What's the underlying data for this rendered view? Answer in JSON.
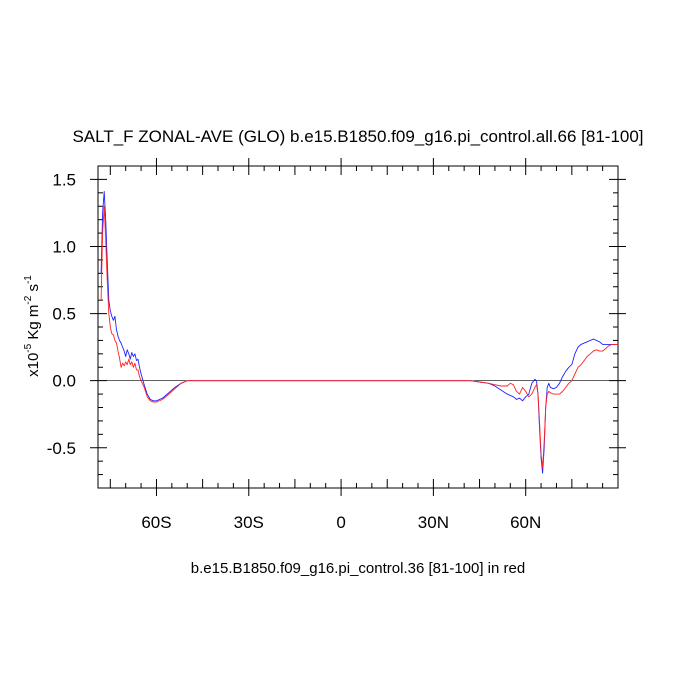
{
  "chart_data": {
    "type": "line",
    "title": "SALT_F ZONAL-AVE (GLO) b.e15.B1850.f09_g16.pi_control.all.66 [81-100]",
    "xlabel": "b.e15.B1850.f09_g16.pi_control.36 [81-100] in red",
    "ylabel": {
      "prefix": "x10",
      "exp": "-5",
      "units": " Kg m",
      "units_exp": "-2",
      "units2": " s",
      "units2_exp": "-1"
    },
    "xlim": [
      -79,
      90
    ],
    "ylim": [
      -0.8,
      1.6
    ],
    "x_ticks": [
      {
        "value": -60,
        "label": "60S"
      },
      {
        "value": -30,
        "label": "30S"
      },
      {
        "value": 0,
        "label": "0"
      },
      {
        "value": 30,
        "label": "30N"
      },
      {
        "value": 60,
        "label": "60N"
      }
    ],
    "y_ticks": [
      {
        "value": 1.5,
        "label": "1.5"
      },
      {
        "value": 1.0,
        "label": "1.0"
      },
      {
        "value": 0.5,
        "label": "0.5"
      },
      {
        "value": 0.0,
        "label": "0.0"
      },
      {
        "value": -0.5,
        "label": "-0.5"
      }
    ],
    "zero_line": true,
    "series": [
      {
        "color": "#2222ff",
        "x": [
          -78,
          -77.5,
          -77,
          -76.5,
          -76,
          -75.5,
          -75,
          -74.5,
          -74,
          -73.5,
          -73,
          -72.5,
          -72,
          -71.5,
          -71,
          -70.5,
          -70,
          -69.5,
          -69,
          -68.5,
          -68,
          -67.5,
          -67,
          -66.5,
          -66,
          -65.5,
          -65,
          -64,
          -63,
          -62,
          -61,
          -60,
          -58,
          -56,
          -54,
          -52,
          -50,
          -30,
          0,
          30,
          42,
          45,
          48,
          50,
          52,
          54,
          56,
          57,
          58,
          59,
          60,
          61,
          62,
          63,
          63.5,
          64,
          64.5,
          65,
          65.5,
          66,
          66.5,
          67,
          67.5,
          68,
          69,
          70,
          71,
          72,
          73,
          74,
          75,
          76,
          77,
          78,
          79,
          80,
          81,
          82,
          83,
          84,
          85,
          86,
          87,
          88,
          89,
          90
        ],
        "y": [
          0.8,
          1.25,
          1.41,
          1.2,
          0.9,
          0.6,
          0.52,
          0.48,
          0.45,
          0.48,
          0.38,
          0.33,
          0.3,
          0.28,
          0.25,
          0.22,
          0.18,
          0.23,
          0.2,
          0.16,
          0.21,
          0.18,
          0.2,
          0.15,
          0.16,
          0.1,
          0.05,
          -0.03,
          -0.1,
          -0.14,
          -0.15,
          -0.15,
          -0.13,
          -0.09,
          -0.05,
          -0.02,
          0.0,
          0.0,
          0.0,
          0.0,
          0.0,
          -0.01,
          -0.02,
          -0.04,
          -0.07,
          -0.1,
          -0.12,
          -0.14,
          -0.13,
          -0.15,
          -0.12,
          -0.1,
          -0.02,
          0.01,
          0.0,
          -0.1,
          -0.35,
          -0.58,
          -0.69,
          -0.5,
          -0.2,
          -0.05,
          -0.02,
          -0.05,
          -0.06,
          -0.05,
          -0.02,
          0.03,
          0.07,
          0.1,
          0.12,
          0.2,
          0.25,
          0.27,
          0.28,
          0.29,
          0.3,
          0.31,
          0.3,
          0.29,
          0.27,
          0.27,
          0.27,
          0.27,
          0.27,
          0.27
        ]
      },
      {
        "color": "#ff2222",
        "x": [
          -78,
          -77.5,
          -77,
          -76.5,
          -76,
          -75.5,
          -75,
          -74.5,
          -74,
          -73.5,
          -73,
          -72.5,
          -72,
          -71.5,
          -71,
          -70.5,
          -70,
          -69.5,
          -69,
          -68.5,
          -68,
          -67.5,
          -67,
          -66.5,
          -66,
          -65.5,
          -65,
          -64,
          -63,
          -62,
          -61,
          -60,
          -58,
          -56,
          -54,
          -52,
          -50,
          -30,
          0,
          30,
          42,
          45,
          48,
          50,
          52,
          54,
          55,
          56,
          57,
          58,
          59,
          60,
          61,
          62,
          63,
          63.5,
          64,
          64.5,
          65,
          65.5,
          66,
          66.5,
          67,
          67.5,
          68,
          69,
          70,
          71,
          72,
          73,
          74,
          75,
          76,
          77,
          78,
          79,
          80,
          81,
          82,
          83,
          84,
          85,
          86,
          87,
          88,
          89,
          90
        ],
        "y": [
          0.6,
          1.1,
          1.3,
          1.05,
          0.75,
          0.5,
          0.4,
          0.35,
          0.34,
          0.3,
          0.28,
          0.22,
          0.17,
          0.1,
          0.13,
          0.11,
          0.14,
          0.12,
          0.16,
          0.12,
          0.14,
          0.1,
          0.13,
          0.08,
          0.08,
          0.03,
          0.0,
          -0.05,
          -0.12,
          -0.15,
          -0.16,
          -0.16,
          -0.14,
          -0.1,
          -0.06,
          -0.02,
          0.0,
          0.0,
          0.0,
          0.0,
          0.0,
          -0.01,
          -0.02,
          -0.03,
          -0.04,
          -0.04,
          -0.02,
          -0.03,
          -0.08,
          -0.1,
          -0.05,
          -0.08,
          -0.12,
          -0.1,
          -0.05,
          -0.03,
          -0.1,
          -0.3,
          -0.55,
          -0.65,
          -0.45,
          -0.2,
          -0.1,
          -0.08,
          -0.09,
          -0.1,
          -0.1,
          -0.1,
          -0.08,
          -0.05,
          -0.02,
          0.0,
          0.05,
          0.1,
          0.12,
          0.15,
          0.18,
          0.2,
          0.22,
          0.23,
          0.22,
          0.22,
          0.24,
          0.26,
          0.27,
          0.27,
          0.27
        ]
      }
    ]
  }
}
